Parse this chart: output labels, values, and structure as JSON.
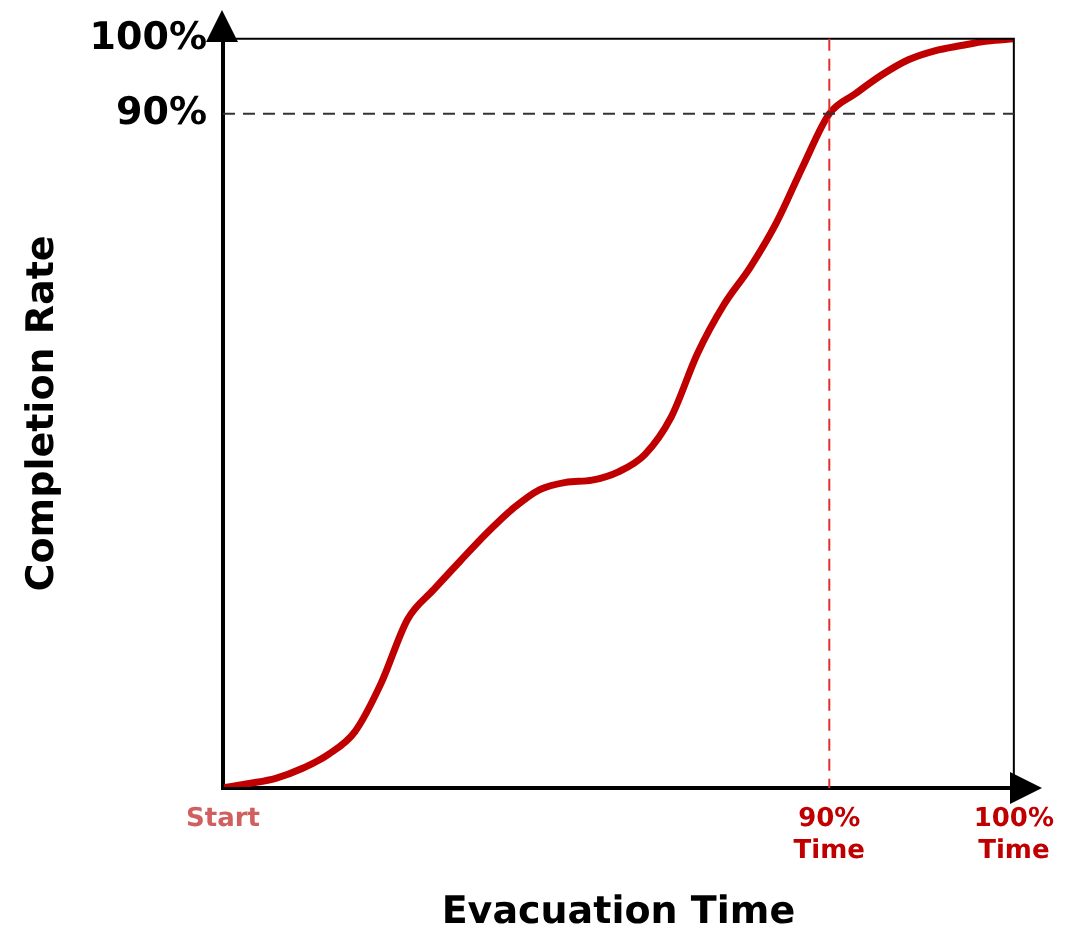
{
  "chart_data": {
    "type": "line",
    "xlabel": "Evacuation Time",
    "ylabel": "Completion Rate",
    "categories": [
      "Start",
      null,
      null,
      null,
      null,
      null,
      null,
      null,
      null,
      null,
      null,
      null,
      null,
      null,
      null,
      null,
      null,
      null,
      null,
      null,
      null,
      null,
      null,
      "90% Time",
      null,
      null,
      null,
      null,
      null,
      null,
      "100% Time"
    ],
    "series": [
      {
        "color": "#c00000",
        "values": [
          0,
          0.6,
          1.3,
          2.6,
          4.5,
          7.5,
          14,
          22.5,
          26.5,
          30.3,
          34,
          37.3,
          39.8,
          40.8,
          41.1,
          42.2,
          44.5,
          49.5,
          58,
          64.5,
          69.5,
          75.5,
          83,
          90,
          92.7,
          95.2,
          97.2,
          98.4,
          99.1,
          99.7,
          100
        ]
      }
    ],
    "ylim": [
      0,
      100
    ],
    "yticks": [
      {
        "value": 90,
        "label": "90%"
      },
      {
        "value": 100,
        "label": "100%"
      }
    ],
    "ref_lines": [
      {
        "axis": "x",
        "value": "90% Time",
        "color": "#e03030",
        "line_style": "dashed"
      },
      {
        "axis": "y",
        "value": 90,
        "color": "#333333",
        "line_style": "dashed"
      }
    ],
    "grid": false,
    "legend": false,
    "marker": "none",
    "line_style": "solid"
  }
}
